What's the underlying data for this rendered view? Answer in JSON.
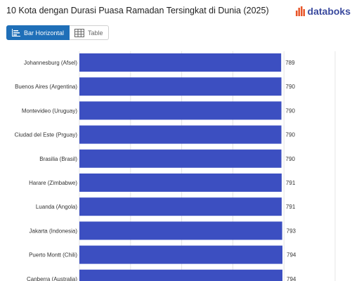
{
  "title": "10 Kota dengan Durasi Puasa Ramadan Tersingkat di Dunia (2025)",
  "brand": {
    "name": "databoks",
    "icon": "bar-logo-icon",
    "color": "#e8562a"
  },
  "tabs": [
    {
      "label": "Bar Horizontal",
      "icon": "bar-chart-icon",
      "active": true
    },
    {
      "label": "Table",
      "icon": "table-icon",
      "active": false
    }
  ],
  "chart_data": {
    "type": "bar",
    "orientation": "horizontal",
    "categories": [
      "Johannesburg (Afsel)",
      "Buenos Aires (Argentina)",
      "Montevideo (Uruguay)",
      "Ciudad del Este (Prguay)",
      "Brasilia (Brasil)",
      "Harare (Zimbabwe)",
      "Luanda (Angola)",
      "Jakarta (Indonesia)",
      "Puerto Montt (Chili)",
      "Canberra (Australia)"
    ],
    "values": [
      789,
      790,
      790,
      790,
      790,
      791,
      791,
      793,
      794,
      794
    ],
    "value_labels": [
      "789",
      "790",
      "790",
      "790",
      "790",
      "791",
      "791",
      "793",
      "794",
      "794"
    ],
    "xlim": [
      0,
      1000
    ],
    "grid": true,
    "bar_color": "#3c4fc1"
  }
}
